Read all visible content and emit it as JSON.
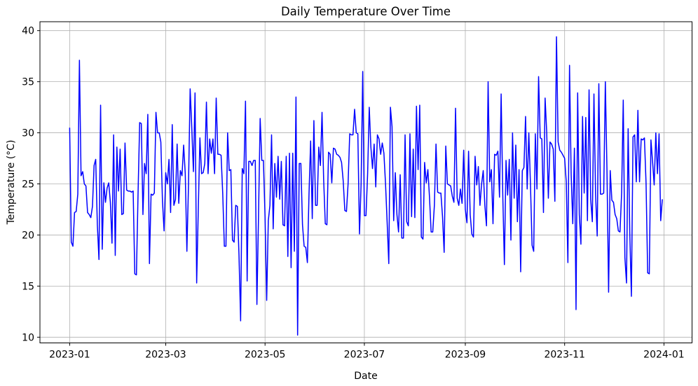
{
  "title": "Daily Temperature Over Time",
  "chart_data": {
    "type": "line",
    "title": "Daily Temperature Over Time",
    "xlabel": "Date",
    "ylabel": "Temperature (°C)",
    "legend": null,
    "grid": true,
    "line_color": "#0000ff",
    "grid_color": "#b0b0b0",
    "background_color": "#ffffff",
    "start_date": "2023-01-01",
    "x_tick_labels": [
      "2023-01",
      "2023-03",
      "2023-05",
      "2023-07",
      "2023-09",
      "2023-11",
      "2024-01"
    ],
    "x_tick_day_offsets": [
      0,
      59,
      120,
      181,
      243,
      304,
      365
    ],
    "y_ticks": [
      10,
      15,
      20,
      25,
      30,
      35,
      40
    ],
    "xlim_days": [
      -18.25,
      382.25
    ],
    "ylim": [
      9.44,
      40.87
    ],
    "values": [
      30.5,
      19.3,
      18.9,
      22.2,
      22.3,
      24.0,
      37.1,
      25.8,
      26.2,
      25.0,
      24.8,
      22.2,
      22.0,
      21.7,
      22.8,
      26.8,
      27.4,
      21.0,
      17.6,
      32.7,
      18.6,
      25.1,
      23.2,
      24.6,
      25.1,
      23.2,
      19.2,
      29.8,
      18.0,
      28.6,
      24.3,
      28.4,
      22.0,
      22.1,
      29.0,
      24.4,
      24.3,
      24.3,
      24.2,
      24.3,
      16.2,
      16.1,
      24.0,
      31.0,
      30.9,
      22.0,
      27.0,
      26.0,
      31.8,
      17.2,
      24.0,
      23.9,
      24.1,
      32.0,
      30.0,
      30.0,
      29.1,
      23.3,
      20.4,
      26.1,
      25.0,
      27.4,
      22.2,
      30.8,
      22.9,
      23.5,
      28.9,
      23.1,
      26.3,
      25.8,
      28.8,
      26.0,
      18.4,
      25.0,
      34.3,
      30.5,
      26.2,
      33.9,
      15.3,
      22.5,
      29.5,
      26.0,
      26.1,
      27.0,
      33.0,
      26.0,
      29.4,
      28.0,
      29.4,
      26.0,
      33.4,
      27.9,
      27.9,
      27.8,
      24.1,
      18.9,
      18.9,
      30.0,
      26.3,
      26.4,
      19.5,
      19.3,
      22.9,
      22.8,
      18.0,
      11.6,
      26.5,
      26.0,
      33.1,
      15.5,
      27.2,
      27.2,
      26.8,
      27.3,
      27.3,
      13.2,
      22.0,
      31.4,
      27.3,
      27.3,
      21.8,
      13.6,
      21.4,
      22.9,
      29.8,
      20.6,
      27.0,
      23.7,
      27.7,
      23.5,
      27.2,
      21.0,
      20.9,
      27.7,
      17.9,
      28.0,
      16.8,
      28.0,
      18.4,
      33.5,
      10.2,
      27.0,
      27.0,
      21.0,
      18.9,
      18.8,
      17.3,
      24.0,
      29.2,
      21.6,
      31.2,
      22.9,
      22.9,
      28.6,
      26.8,
      32.0,
      25.4,
      21.1,
      21.0,
      28.1,
      27.9,
      25.1,
      28.5,
      28.4,
      27.9,
      27.8,
      27.6,
      27.1,
      25.3,
      22.4,
      22.3,
      25.0,
      29.9,
      29.8,
      29.8,
      32.3,
      30.0,
      29.9,
      20.1,
      25.0,
      36.0,
      21.9,
      21.9,
      26.0,
      32.5,
      28.6,
      26.5,
      28.9,
      24.7,
      29.8,
      29.4,
      27.9,
      29.0,
      28.0,
      25.0,
      21.2,
      17.2,
      32.5,
      30.6,
      21.4,
      26.1,
      22.0,
      20.3,
      25.9,
      19.7,
      19.7,
      29.8,
      21.3,
      20.9,
      29.9,
      21.8,
      28.4,
      21.7,
      32.6,
      26.4,
      32.7,
      19.8,
      19.6,
      27.1,
      25.1,
      26.4,
      23.7,
      20.3,
      20.3,
      22.9,
      28.9,
      24.2,
      24.1,
      24.1,
      21.8,
      18.3,
      28.7,
      25.0,
      24.9,
      24.8,
      23.8,
      23.2,
      32.4,
      23.6,
      22.9,
      24.5,
      23.1,
      28.3,
      22.5,
      21.2,
      28.2,
      22.0,
      20.1,
      19.8,
      27.7,
      24.9,
      26.7,
      22.9,
      25.0,
      26.3,
      22.9,
      20.9,
      35.0,
      25.2,
      26.4,
      21.1,
      27.9,
      27.8,
      28.2,
      23.7,
      33.8,
      24.0,
      17.1,
      27.3,
      23.9,
      27.4,
      19.5,
      30.0,
      23.6,
      28.8,
      21.3,
      26.4,
      16.4,
      26.3,
      26.6,
      31.6,
      24.5,
      30.0,
      25.0,
      19.0,
      18.4,
      29.9,
      24.5,
      35.5,
      29.5,
      29.4,
      22.2,
      33.4,
      30.0,
      23.6,
      29.1,
      28.9,
      28.4,
      23.3,
      39.4,
      29.1,
      28.3,
      28.1,
      27.8,
      27.5,
      25.2,
      17.3,
      36.6,
      26.0,
      21.1,
      28.5,
      12.7,
      33.9,
      22.0,
      19.1,
      31.6,
      24.1,
      31.5,
      21.4,
      34.2,
      23.5,
      21.3,
      33.8,
      24.0,
      19.9,
      34.8,
      24.0,
      24.0,
      24.1,
      35.0,
      26.3,
      14.4,
      26.3,
      23.4,
      23.2,
      22.0,
      21.6,
      20.4,
      20.3,
      24.1,
      33.2,
      17.8,
      15.3,
      30.4,
      20.3,
      14.0,
      29.6,
      29.8,
      25.2,
      32.2,
      25.2,
      29.4,
      29.3,
      29.5,
      25.1,
      16.3,
      16.2,
      29.3,
      27.2,
      24.9,
      30.0,
      26.0,
      29.9,
      21.4,
      23.5
    ]
  }
}
